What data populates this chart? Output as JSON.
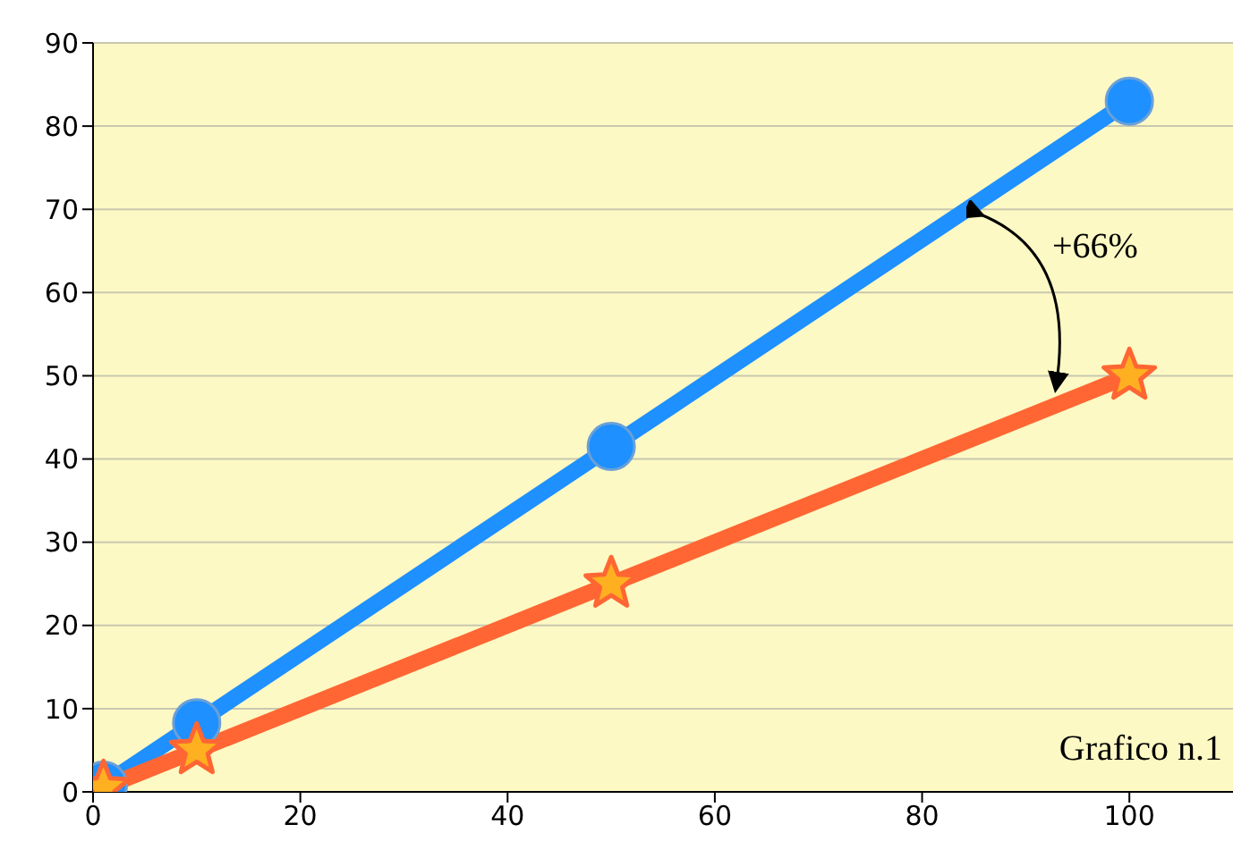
{
  "chart_data": {
    "type": "line",
    "x": [
      1,
      10,
      50,
      100
    ],
    "series": [
      {
        "color": "#1e90ff",
        "values": [
          0.8,
          8.3,
          41.5,
          83
        ],
        "marker": "circle"
      },
      {
        "color": "#ff6633",
        "values": [
          0.5,
          5,
          25,
          50
        ],
        "marker": "star"
      }
    ],
    "xlim": [
      0,
      110
    ],
    "xticks": [
      0,
      20,
      40,
      60,
      80,
      100
    ],
    "ylim": [
      0,
      90
    ],
    "yticks": [
      0,
      10,
      20,
      30,
      40,
      50,
      60,
      70,
      80,
      90
    ],
    "grid": "y",
    "line_style": "solid",
    "annotations": [
      "+66%",
      "Grafico n.1"
    ]
  }
}
